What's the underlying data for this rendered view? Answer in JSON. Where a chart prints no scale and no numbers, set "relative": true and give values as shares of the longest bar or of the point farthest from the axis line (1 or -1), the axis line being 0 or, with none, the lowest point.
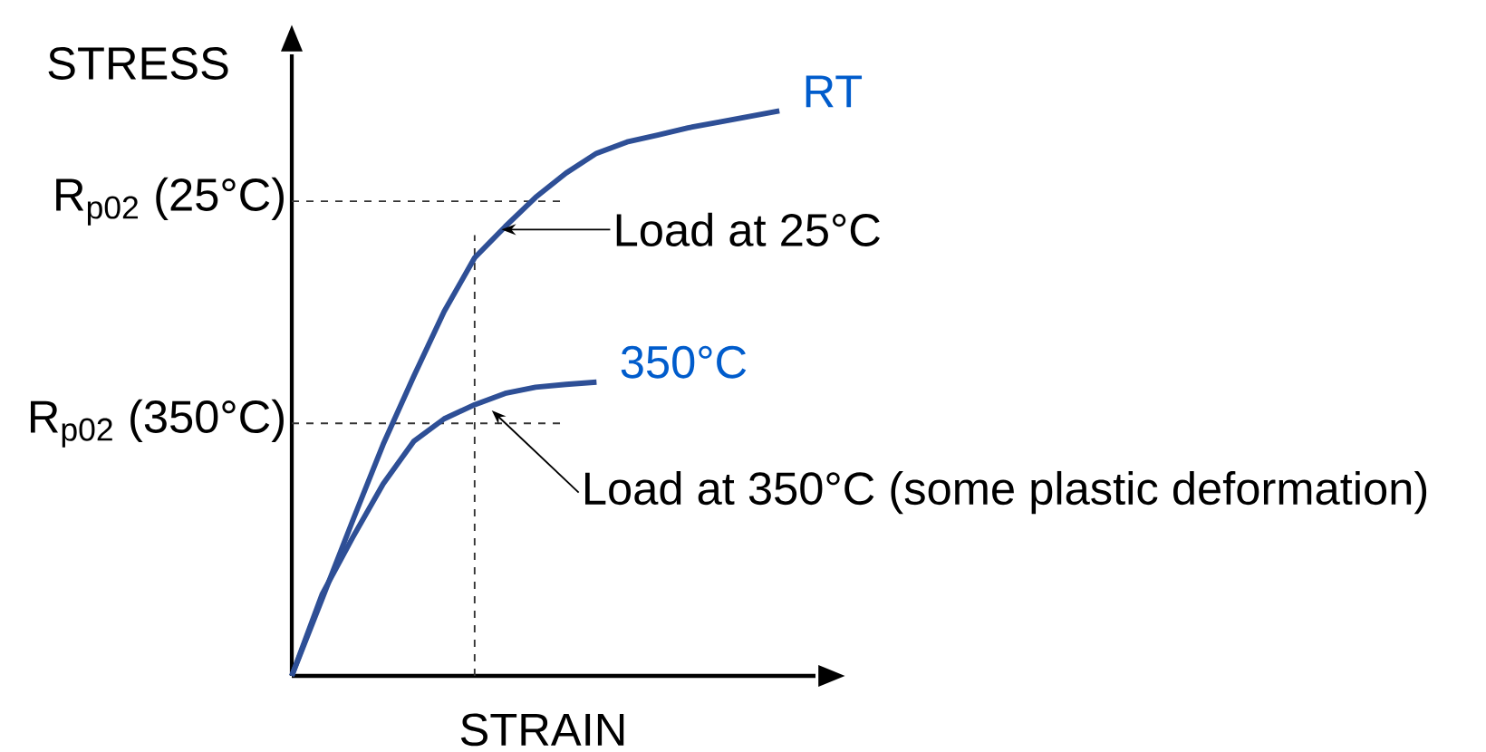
{
  "chart_data": {
    "type": "line",
    "relative": true,
    "xlabel": "STRAIN",
    "ylabel": "STRESS",
    "categories": [
      null,
      null,
      null,
      null,
      null,
      null,
      null,
      null,
      null,
      null,
      null,
      null,
      null,
      null,
      null,
      null,
      null
    ],
    "series": [
      {
        "name": "RT",
        "color": "#2e4f96",
        "values": [
          0,
          0.137,
          0.275,
          0.41,
          0.53,
          0.645,
          0.74,
          0.795,
          0.847,
          0.89,
          0.925,
          0.945,
          0.957,
          0.97,
          0.98,
          0.99,
          1
        ]
      },
      {
        "name": "350°C",
        "color": "#2e4f96",
        "values": [
          0,
          0.145,
          0.245,
          0.34,
          0.415,
          0.455,
          0.48,
          0.5,
          0.511,
          0.516,
          0.52,
          null,
          null,
          null,
          null,
          null,
          null
        ]
      }
    ],
    "ref_lines": [
      {
        "axis": "y",
        "value": 0.84,
        "label": "R$_{p02}$ (25°C)",
        "line_style": "dashed"
      },
      {
        "axis": "y",
        "value": 0.447,
        "label": "R$_{p02}$ (350°C)",
        "line_style": "dashed"
      }
    ],
    "annotations": [
      "Load at 25°C",
      "Load at 350°C (some plastic deformation)"
    ]
  }
}
